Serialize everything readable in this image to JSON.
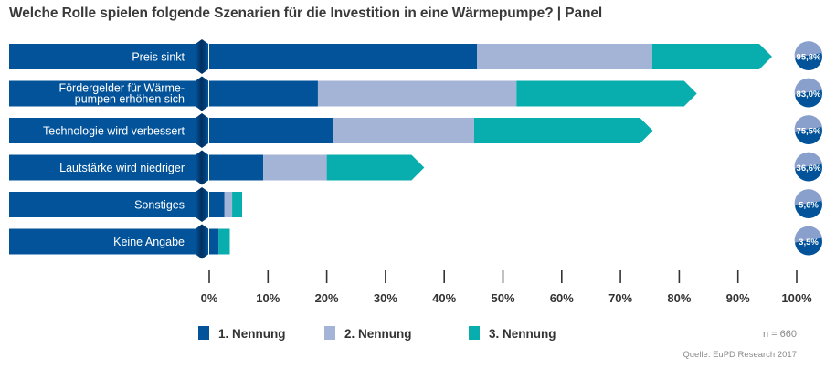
{
  "chart_data": {
    "type": "bar",
    "orientation": "horizontal",
    "stacked": true,
    "title": "Welche Rolle spielen folgende Szenarien für die Investition in eine Wärmepumpe? | Panel",
    "categories": [
      [
        "Preis sinkt"
      ],
      [
        "Fördergelder für Wärme-",
        "pumpen erhöhen sich"
      ],
      [
        "Technologie wird verbessert"
      ],
      [
        "Lautstärke wird niedriger"
      ],
      [
        "Sonstiges"
      ],
      [
        "Keine Angabe"
      ]
    ],
    "series": [
      {
        "name": "1. Nennung",
        "color": "#02539a",
        "values": [
          45.6,
          18.5,
          21.0,
          9.2,
          2.6,
          1.6
        ]
      },
      {
        "name": "2. Nennung",
        "color": "#a4b4d6",
        "values": [
          29.8,
          33.8,
          24.1,
          10.8,
          1.3,
          0.0
        ]
      },
      {
        "name": "3. Nennung",
        "color": "#08adad",
        "values": [
          20.4,
          30.7,
          30.4,
          16.6,
          1.7,
          1.9
        ]
      }
    ],
    "totals": [
      "95,8%",
      "83,0%",
      "75,5%",
      "36,6%",
      "5,6%",
      "3,5%"
    ],
    "xlim": [
      0,
      100
    ],
    "xticks": [
      "0%",
      "10%",
      "20%",
      "30%",
      "40%",
      "50%",
      "60%",
      "70%",
      "80%",
      "90%",
      "100%"
    ],
    "xlabel": "",
    "ylabel": "",
    "grid": false,
    "legend_position": "bottom-left",
    "note": "n = 660",
    "source": "Quelle: EuPD Research 2017"
  },
  "colors": {
    "label_band": "#02539a",
    "badge_top": "#8aa0cc",
    "badge_bottom": "#02539a"
  }
}
